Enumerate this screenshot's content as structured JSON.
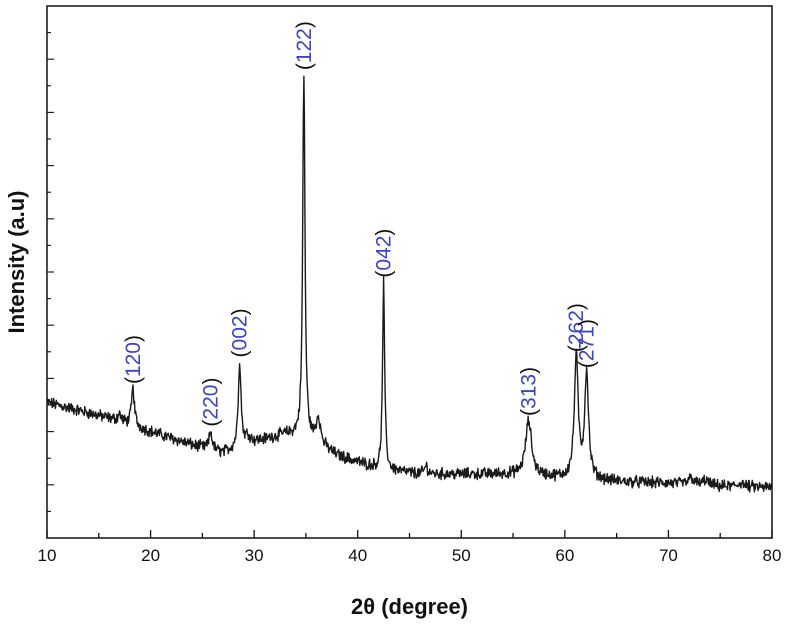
{
  "chart_data": {
    "type": "line",
    "xlabel": "2θ (degree)",
    "ylabel": "Intensity (a.u)",
    "xlim": [
      10,
      80
    ],
    "ylim": [
      0,
      100
    ],
    "x_ticks": [
      10,
      20,
      30,
      40,
      50,
      60,
      70,
      80
    ],
    "y_ticks_labeled": false,
    "grid": false,
    "legend": "none",
    "colors": {
      "trace": "#1a1a1a",
      "peak_label": "#3b44c8",
      "axis": "#111111"
    },
    "baseline": [
      [
        10,
        25.5
      ],
      [
        13,
        24
      ],
      [
        16,
        22.5
      ],
      [
        20,
        20
      ],
      [
        24,
        17.5
      ],
      [
        27,
        16
      ],
      [
        30,
        18
      ],
      [
        33,
        19.5
      ],
      [
        35,
        19
      ],
      [
        38,
        15.5
      ],
      [
        42,
        13
      ],
      [
        46,
        12
      ],
      [
        50,
        12
      ],
      [
        54,
        12
      ],
      [
        58,
        11.5
      ],
      [
        62,
        11
      ],
      [
        66,
        10.5
      ],
      [
        70,
        10.3
      ],
      [
        75,
        9.7
      ],
      [
        80,
        9.5
      ]
    ],
    "peaks": [
      {
        "label": "(120)",
        "two_theta": 18.3,
        "intensity": 28
      },
      {
        "label": "(220)",
        "two_theta": 25.8,
        "intensity": 20
      },
      {
        "label": "(002)",
        "two_theta": 28.6,
        "intensity": 33
      },
      {
        "label": "(122)",
        "two_theta": 34.8,
        "intensity": 87
      },
      {
        "label": "(042)",
        "two_theta": 42.5,
        "intensity": 48
      },
      {
        "label": "(313)",
        "two_theta": 56.5,
        "intensity": 22
      },
      {
        "label": "(262)",
        "two_theta": 61.1,
        "intensity": 34
      },
      {
        "label": "(271)",
        "two_theta": 62.1,
        "intensity": 31
      }
    ]
  }
}
